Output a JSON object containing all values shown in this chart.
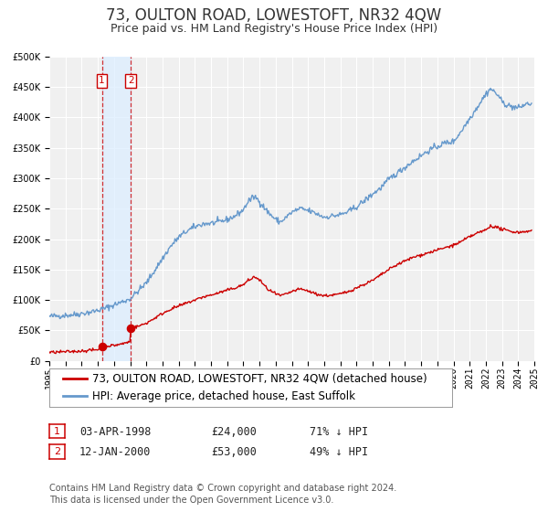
{
  "title": "73, OULTON ROAD, LOWESTOFT, NR32 4QW",
  "subtitle": "Price paid vs. HM Land Registry's House Price Index (HPI)",
  "legend_label_red": "73, OULTON ROAD, LOWESTOFT, NR32 4QW (detached house)",
  "legend_label_blue": "HPI: Average price, detached house, East Suffolk",
  "transaction1_date": "03-APR-1998",
  "transaction1_price": "£24,000",
  "transaction1_hpi": "71% ↓ HPI",
  "transaction1_year": 1998.25,
  "transaction1_value": 24000,
  "transaction2_date": "12-JAN-2000",
  "transaction2_price": "£53,000",
  "transaction2_hpi": "49% ↓ HPI",
  "transaction2_year": 2000.04,
  "transaction2_value": 53000,
  "footer_line1": "Contains HM Land Registry data © Crown copyright and database right 2024.",
  "footer_line2": "This data is licensed under the Open Government Licence v3.0.",
  "ylim": [
    0,
    500000
  ],
  "xlim_start": 1995,
  "xlim_end": 2025,
  "background_color": "#ffffff",
  "plot_bg_color": "#f0f0f0",
  "grid_color": "#ffffff",
  "red_color": "#cc0000",
  "blue_color": "#6699cc",
  "shade_color": "#ddeeff",
  "vline_color": "#cc0000",
  "title_color": "#333333",
  "font_size_title": 12,
  "font_size_subtitle": 9,
  "font_size_ticks": 7,
  "font_size_legend": 8.5,
  "font_size_table": 8.5,
  "font_size_footer": 7
}
